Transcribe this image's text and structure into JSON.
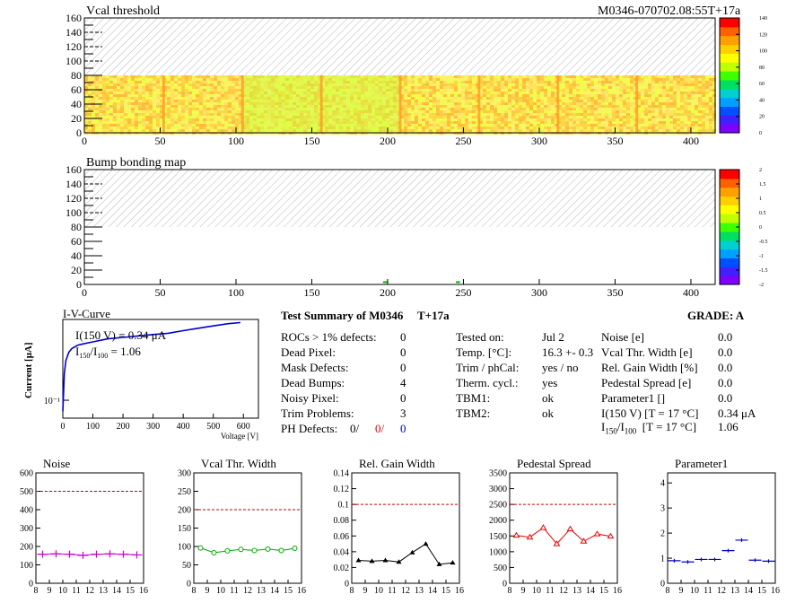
{
  "header": {
    "map1_title": "Vcal threshold",
    "module_id": "M0346-070702.08:55T+17a",
    "map2_title": "Bump bonding map"
  },
  "colors": {
    "palette": [
      "#8000ff",
      "#4020ff",
      "#0050ff",
      "#00a0ff",
      "#00d0d0",
      "#00e060",
      "#40ff00",
      "#c0ff00",
      "#ffff00",
      "#ffd000",
      "#ffa000",
      "#ff6000",
      "#ff0000"
    ],
    "map_base": "#fff060",
    "noise": "#cc00cc",
    "vcal": "#00aa00",
    "gain": "#000000",
    "pedestal": "#ee0000",
    "param1": "#0000cc",
    "iv": "#0000cc",
    "ref_line": "#cc0000"
  },
  "chart_data": [
    {
      "type": "heatmap",
      "name": "vcal-threshold-map",
      "title": "Vcal threshold",
      "x_ticks": [
        "0",
        "50",
        "100",
        "150",
        "200",
        "250",
        "300",
        "350",
        "400"
      ],
      "y_ticks": [
        "0",
        "20",
        "40",
        "60",
        "80",
        "100",
        "120",
        "140",
        "160"
      ],
      "xlim": [
        0,
        416
      ],
      "ylim": [
        0,
        160
      ],
      "filled_rows": [
        0,
        80
      ],
      "roc_borders": [
        52,
        104,
        156,
        208,
        260,
        312,
        364
      ],
      "greenish_regions": [
        [
          104,
          208
        ]
      ],
      "colorbar_ticks": [
        "0",
        "20",
        "40",
        "60",
        "80",
        "100",
        "120",
        "140"
      ],
      "colorbar_range": [
        0,
        140
      ]
    },
    {
      "type": "heatmap",
      "name": "bump-bonding-map",
      "title": "Bump bonding map",
      "x_ticks": [
        "0",
        "50",
        "100",
        "150",
        "200",
        "250",
        "300",
        "350",
        "400"
      ],
      "y_ticks": [
        "0",
        "20",
        "40",
        "60",
        "80",
        "100",
        "120",
        "140",
        "160"
      ],
      "xlim": [
        0,
        416
      ],
      "ylim": [
        0,
        160
      ],
      "filled_rows": [
        0,
        80
      ],
      "dead_bumps": [
        [
          197,
          2
        ],
        [
          198,
          2
        ],
        [
          245,
          2
        ],
        [
          246,
          2
        ]
      ],
      "colorbar_ticks": [
        "2",
        "1.5",
        "1",
        "0.5",
        "0",
        "-0.5",
        "-1",
        "-1.5",
        "-2"
      ],
      "colorbar_range": [
        -2,
        2
      ]
    },
    {
      "type": "line",
      "name": "iv-curve",
      "title": "I-V-Curve",
      "xlabel": "Voltage [V]",
      "ylabel": "Current [μA]",
      "x_ticks": [
        "0",
        "100",
        "200",
        "300",
        "400",
        "500",
        "600"
      ],
      "y_tick_label": "10⁻¹",
      "xlim": [
        0,
        650
      ],
      "log_y": true,
      "ylim": [
        0.07,
        0.5
      ],
      "annotation_1": "I(150 V) = 0.34 μA",
      "annotation_2_parts": [
        "I",
        "150",
        "/I",
        "100",
        " =  1.06"
      ],
      "x": [
        0,
        5,
        10,
        20,
        30,
        50,
        75,
        100,
        150,
        200,
        250,
        300,
        350,
        400,
        450,
        500,
        550,
        590
      ],
      "y": [
        0.08,
        0.17,
        0.22,
        0.26,
        0.28,
        0.3,
        0.31,
        0.32,
        0.34,
        0.35,
        0.36,
        0.37,
        0.38,
        0.4,
        0.42,
        0.44,
        0.46,
        0.47
      ]
    },
    {
      "type": "line",
      "name": "noise",
      "title": "Noise",
      "x": [
        8.5,
        9.5,
        10.5,
        11.5,
        12.5,
        13.5,
        14.5,
        15.5
      ],
      "values": [
        158,
        160,
        158,
        152,
        158,
        160,
        158,
        154
      ],
      "xlim": [
        8,
        16
      ],
      "ylim": [
        0,
        600
      ],
      "x_ticks": [
        "8",
        "9",
        "10",
        "11",
        "12",
        "13",
        "14",
        "15",
        "16"
      ],
      "y_ticks": [
        "0",
        "100",
        "200",
        "300",
        "400",
        "500",
        "600"
      ],
      "ref_line": 500,
      "marker": "cross"
    },
    {
      "type": "line",
      "name": "vcal-thr-width",
      "title": "Vcal Thr. Width",
      "x": [
        8.5,
        9.5,
        10.5,
        11.5,
        12.5,
        13.5,
        14.5,
        15.5
      ],
      "values": [
        96,
        83,
        88,
        92,
        89,
        93,
        89,
        95
      ],
      "xlim": [
        8,
        16
      ],
      "ylim": [
        0,
        300
      ],
      "x_ticks": [
        "8",
        "9",
        "10",
        "11",
        "12",
        "13",
        "14",
        "15",
        "16"
      ],
      "y_ticks": [
        "0",
        "50",
        "100",
        "150",
        "200",
        "250",
        "300"
      ],
      "ref_line": 200,
      "marker": "circle"
    },
    {
      "type": "line",
      "name": "rel-gain-width",
      "title": "Rel. Gain Width",
      "x": [
        8.5,
        9.5,
        10.5,
        11.5,
        12.5,
        13.5,
        14.5,
        15.5
      ],
      "values": [
        0.029,
        0.028,
        0.029,
        0.027,
        0.039,
        0.05,
        0.024,
        0.026
      ],
      "xlim": [
        8,
        16
      ],
      "ylim": [
        0,
        0.14
      ],
      "x_ticks": [
        "8",
        "9",
        "10",
        "11",
        "12",
        "13",
        "14",
        "15",
        "16"
      ],
      "y_ticks": [
        "0",
        "0.02",
        "0.04",
        "0.06",
        "0.08",
        "0.1",
        "0.12",
        "0.14"
      ],
      "ref_line": 0.1,
      "marker": "triangle"
    },
    {
      "type": "line",
      "name": "pedestal-spread",
      "title": "Pedestal Spread",
      "x": [
        8.5,
        9.5,
        10.5,
        11.5,
        12.5,
        13.5,
        14.5,
        15.5
      ],
      "values": [
        1520,
        1460,
        1760,
        1250,
        1720,
        1330,
        1560,
        1490
      ],
      "xlim": [
        8,
        16
      ],
      "ylim": [
        0,
        3500
      ],
      "x_ticks": [
        "8",
        "9",
        "10",
        "11",
        "12",
        "13",
        "14",
        "15",
        "16"
      ],
      "y_ticks": [
        "0",
        "500",
        "1000",
        "1500",
        "2000",
        "2500",
        "3000",
        "3500"
      ],
      "ref_line": 2500,
      "marker": "triangle-open"
    },
    {
      "type": "scatter",
      "name": "parameter1",
      "title": "Parameter1",
      "x": [
        8.5,
        9.5,
        10.5,
        11.5,
        12.5,
        13.5,
        14.5,
        15.5
      ],
      "values": [
        0.9,
        0.85,
        0.95,
        0.95,
        1.3,
        1.72,
        0.92,
        0.88
      ],
      "xlim": [
        8,
        16
      ],
      "ylim": [
        0,
        4.4
      ],
      "x_ticks": [
        "8",
        "9",
        "10",
        "11",
        "12",
        "13",
        "14",
        "15",
        "16"
      ],
      "y_ticks": [
        "0",
        "1",
        "2",
        "3",
        "4"
      ],
      "marker": "hbar"
    }
  ],
  "summary": {
    "title": "Test Summary of M0346",
    "tag": "T+17a",
    "grade": "GRADE:  A",
    "defects": [
      {
        "label": "ROCs > 1% defects:",
        "value": "0"
      },
      {
        "label": "Dead Pixel:",
        "value": "0"
      },
      {
        "label": "Mask Defects:",
        "value": "0"
      },
      {
        "label": "Dead Bumps:",
        "value": "4"
      },
      {
        "label": "Noisy Pixel:",
        "value": "0"
      },
      {
        "label": "Trim Problems:",
        "value": "3"
      }
    ],
    "ph_label": "PH Defects:",
    "ph_values": [
      "0/",
      "0/",
      "0"
    ],
    "conditions": [
      {
        "label": "Tested on:",
        "value": "Jul 2"
      },
      {
        "label": "Temp. [°C]:",
        "value": "16.3 +- 0.3"
      },
      {
        "label": "Trim / phCal:",
        "value": "yes / no"
      },
      {
        "label": "Therm. cycl.:",
        "value": "yes"
      },
      {
        "label": "TBM1:",
        "value": "ok"
      },
      {
        "label": "TBM2:",
        "value": "ok"
      }
    ],
    "params": [
      {
        "label": "Noise [e]",
        "value": "0.0"
      },
      {
        "label": "Vcal Thr. Width [e]",
        "value": "0.0"
      },
      {
        "label": "Rel. Gain Width [%]",
        "value": "0.0"
      },
      {
        "label": "Pedestal Spread [e]",
        "value": "0.0"
      },
      {
        "label": "Parameter1 []",
        "value": "0.0"
      },
      {
        "label": "I(150 V) [T = 17 °C]",
        "value": "0.34 μA"
      }
    ],
    "ratio_label_parts": [
      "I",
      "150",
      "/I",
      "100",
      "  [T = 17 °C]"
    ],
    "ratio_value": "1.06"
  }
}
